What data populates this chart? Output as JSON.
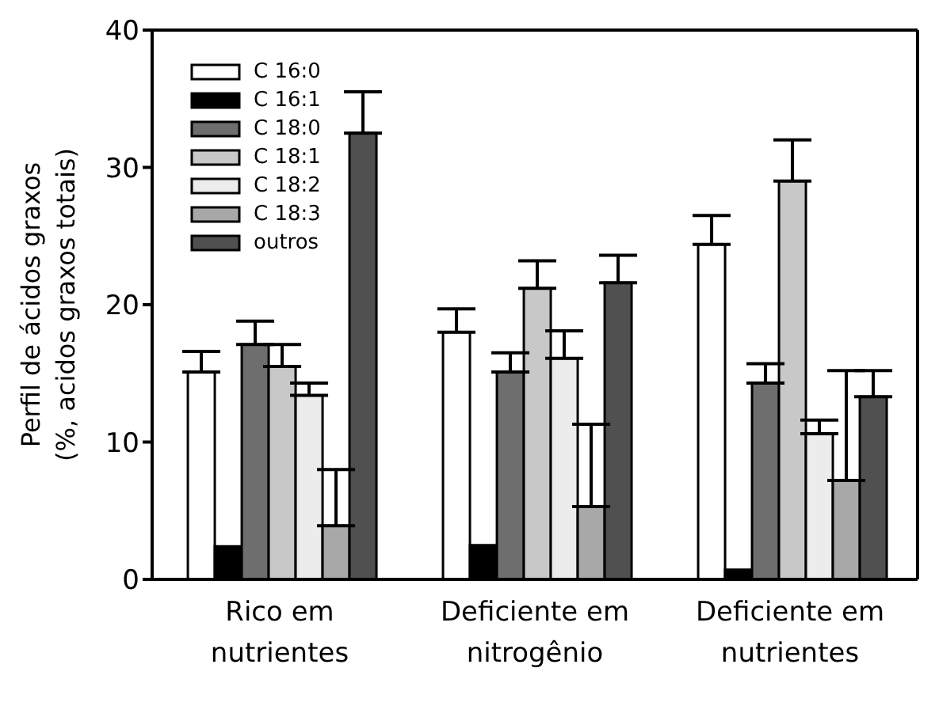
{
  "chart_data": {
    "type": "bar",
    "ylabel": "Perfil de ácidos graxos (%, acidos graxos totais)",
    "categories": [
      "Rico em nutrientes",
      "Deficiente em nitrogênio",
      "Deficiente em nutrientes"
    ],
    "series": [
      {
        "name": "C 16:0",
        "color": "#ffffff",
        "values": [
          15.1,
          18.0,
          24.4
        ],
        "errors": [
          [
            15.1,
            16.6
          ],
          [
            18.0,
            19.7
          ],
          [
            24.4,
            26.5
          ]
        ]
      },
      {
        "name": "C 16:1",
        "color": "#000000",
        "values": [
          2.4,
          2.5,
          0.7
        ],
        "errors": [
          null,
          null,
          null
        ]
      },
      {
        "name": "C 18:0",
        "color": "#6e6e6e",
        "values": [
          17.1,
          15.1,
          14.3
        ],
        "errors": [
          [
            17.1,
            18.8
          ],
          [
            15.1,
            16.5
          ],
          [
            14.3,
            15.7
          ]
        ]
      },
      {
        "name": "C 18:1",
        "color": "#c8c8c8",
        "values": [
          15.5,
          21.2,
          29.0
        ],
        "errors": [
          [
            15.5,
            17.1
          ],
          [
            21.2,
            23.2
          ],
          [
            29.0,
            32.0
          ]
        ]
      },
      {
        "name": "C 18:2",
        "color": "#ececec",
        "values": [
          13.4,
          16.1,
          10.6
        ],
        "errors": [
          [
            13.4,
            14.3
          ],
          [
            16.1,
            18.1
          ],
          [
            10.6,
            11.6
          ]
        ]
      },
      {
        "name": "C 18:3",
        "color": "#a8a8a8",
        "values": [
          3.9,
          5.3,
          7.2
        ],
        "errors": [
          [
            3.9,
            8.0
          ],
          [
            5.3,
            11.3
          ],
          [
            7.2,
            15.2
          ]
        ]
      },
      {
        "name": "outros",
        "color": "#505050",
        "values": [
          32.5,
          21.6,
          13.3
        ],
        "errors": [
          [
            32.5,
            35.5
          ],
          [
            21.6,
            23.6
          ],
          [
            13.3,
            15.2
          ]
        ]
      }
    ],
    "ylim": [
      0,
      40
    ],
    "yticks": [
      0,
      10,
      20,
      30,
      40
    ],
    "grid": false,
    "legend": "top left"
  }
}
